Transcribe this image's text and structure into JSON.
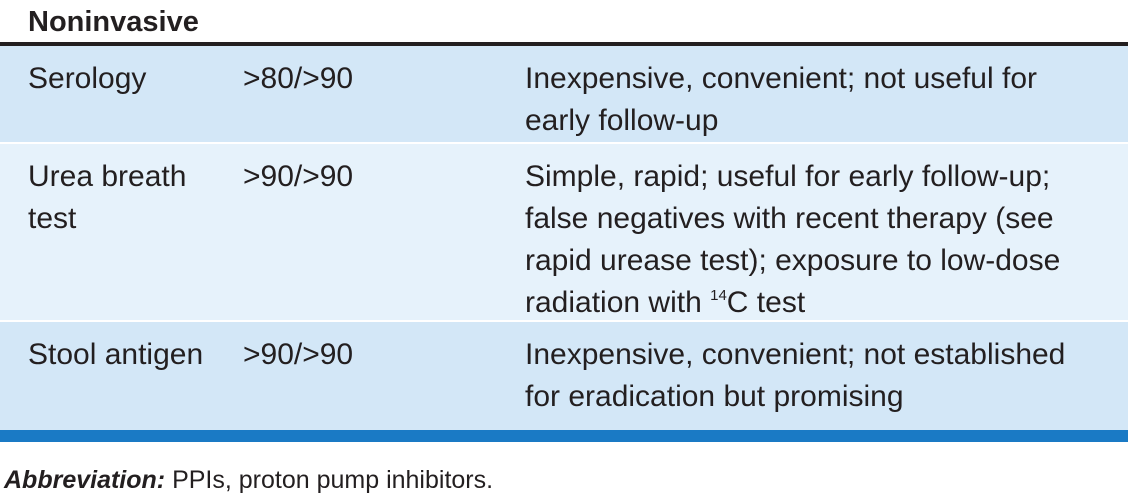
{
  "section_heading": "Noninvasive",
  "rows": [
    {
      "test": "Serology",
      "accuracy": ">80/>90",
      "comment_lines": [
        "Inexpensive, convenient; not useful for",
        "early follow-up"
      ]
    },
    {
      "test_lines": [
        "Urea breath",
        "test"
      ],
      "accuracy": ">90/>90",
      "comment_lines": [
        "Simple, rapid; useful for early follow-up;",
        "false negatives with recent therapy (see",
        "rapid urease test); exposure to low-dose"
      ],
      "comment_last_prefix": "radiation with ",
      "comment_last_superscript": "14",
      "comment_last_suffix": "C test"
    },
    {
      "test": "Stool antigen",
      "accuracy": ">90/>90",
      "comment_lines": [
        "Inexpensive, convenient; not established",
        "for eradication but promising"
      ]
    }
  ],
  "footnote": {
    "label": "Abbreviation:",
    "text": " PPIs, proton pump inhibitors."
  },
  "colors": {
    "row_shade_a": "#d3e7f7",
    "row_shade_b": "#e6f2fb",
    "bottom_rule": "#1a7ac5"
  }
}
